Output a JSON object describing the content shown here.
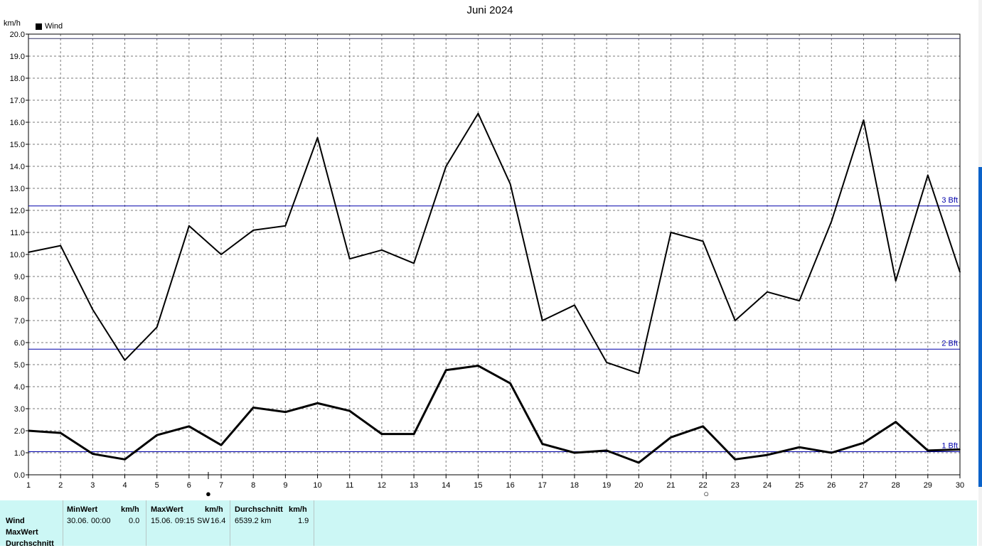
{
  "window": {
    "title": "Juni 2024",
    "unit_label": "km/h"
  },
  "legend": {
    "label": "Wind",
    "color": "#000000"
  },
  "colors": {
    "grid": "#7a7a7a",
    "reference_lines": "#0000aa",
    "series": "#000000",
    "stats_background": "#ccf7f5"
  },
  "chart_data": {
    "type": "line",
    "title": "Juni 2024",
    "ylabel": "km/h",
    "xlabel": "",
    "xlim": [
      1,
      30
    ],
    "ylim": [
      0,
      20
    ],
    "y_ticks": [
      "0.0",
      "1.0",
      "2.0",
      "3.0",
      "4.0",
      "5.0",
      "6.0",
      "7.0",
      "8.0",
      "9.0",
      "10.0",
      "11.0",
      "12.0",
      "13.0",
      "14.0",
      "15.0",
      "16.0",
      "17.0",
      "18.0",
      "19.0",
      "20.0"
    ],
    "x": [
      1,
      2,
      3,
      4,
      5,
      6,
      7,
      8,
      9,
      10,
      11,
      12,
      13,
      14,
      15,
      16,
      17,
      18,
      19,
      20,
      21,
      22,
      23,
      24,
      25,
      26,
      27,
      28,
      29,
      30
    ],
    "grid": true,
    "legend_position": "top-left",
    "series": [
      {
        "name": "Wind",
        "stroke": "normal",
        "values": [
          10.1,
          10.4,
          7.5,
          5.2,
          6.7,
          11.3,
          10.0,
          11.1,
          11.3,
          15.3,
          9.8,
          10.2,
          9.6,
          14.0,
          16.4,
          13.2,
          7.0,
          7.7,
          5.1,
          4.6,
          11.0,
          10.6,
          7.0,
          8.3,
          7.9,
          11.5,
          16.1,
          8.8,
          13.6,
          9.2
        ]
      },
      {
        "stroke": "bold",
        "values": [
          2.0,
          1.9,
          0.95,
          0.7,
          1.8,
          2.2,
          1.35,
          3.05,
          2.85,
          3.25,
          2.9,
          1.85,
          1.85,
          4.75,
          4.95,
          4.15,
          1.4,
          1.0,
          1.1,
          0.55,
          1.7,
          2.2,
          0.7,
          0.9,
          1.25,
          1.0,
          1.45,
          2.4,
          1.1,
          1.15
        ]
      }
    ],
    "reference_lines": [
      {
        "label": "1 Bft",
        "value": 1.05
      },
      {
        "label": "2 Bft",
        "value": 5.7
      },
      {
        "label": "3 Bft",
        "value": 12.2
      }
    ],
    "top_line": 19.8,
    "moon_markers": [
      {
        "day": 6.6,
        "symbol": "●"
      },
      {
        "day": 22.1,
        "symbol": "○"
      }
    ]
  },
  "stats_table": {
    "row_labels": [
      "Wind",
      "MaxWert",
      "Durchschnitt"
    ],
    "min_header": "MinWert",
    "min_unit": "km/h",
    "min_date": "30.06.",
    "min_time": "00:00",
    "min_value": "0.0",
    "max_header": "MaxWert",
    "max_unit": "km/h",
    "max_date": "15.06.",
    "max_time": "09:15",
    "max_dir": "SW",
    "max_value": "16.4",
    "avg_header": "Durchschnitt",
    "avg_unit": "km/h",
    "avg_distance": "6539.2 km",
    "avg_value": "1.9"
  }
}
